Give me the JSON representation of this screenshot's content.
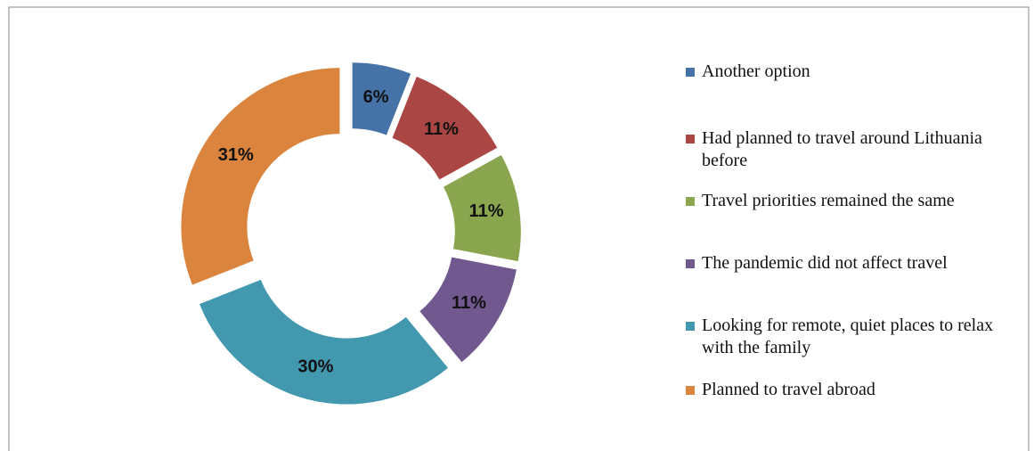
{
  "chart_data": {
    "type": "donut",
    "categories": [
      "Another option",
      "Had planned to travel around Lithuania before",
      "Travel priorities remained the same",
      "The pandemic did not affect travel",
      "Looking for remote, quiet places to relax with the family",
      "Planned to travel abroad"
    ],
    "values": [
      6,
      11,
      11,
      11,
      30,
      31
    ],
    "value_labels": [
      "6%",
      "11%",
      "11%",
      "11%",
      "30%",
      "31%"
    ],
    "colors": [
      "#4572a7",
      "#aa4643",
      "#89a54e",
      "#71588f",
      "#4198af",
      "#db843d"
    ],
    "legend": "right"
  }
}
